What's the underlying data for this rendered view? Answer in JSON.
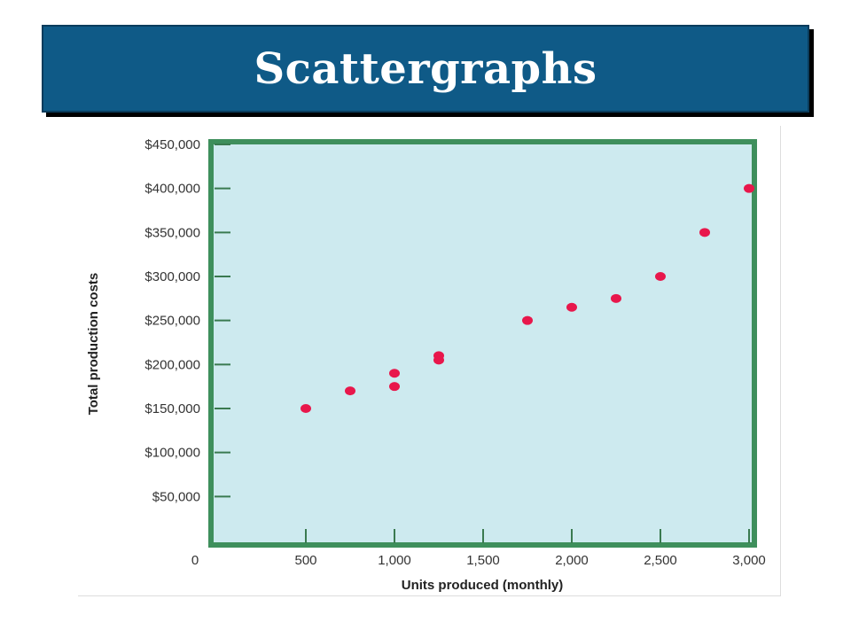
{
  "slide": {
    "title": "Scattergraphs"
  },
  "colors": {
    "banner": "#0f5a87",
    "plot_bg": "#cdeaef",
    "plot_border": "#3e8f5c",
    "point": "#e8174b"
  },
  "chart_data": {
    "type": "scatter",
    "title": "",
    "xlabel": "Units produced (monthly)",
    "ylabel": "Total production costs",
    "xlim": [
      0,
      3000
    ],
    "ylim": [
      0,
      450000
    ],
    "grid": false,
    "x_ticks": [
      500,
      1000,
      1500,
      2000,
      2500,
      3000
    ],
    "x_tick_labels": [
      "500",
      "1,000",
      "1,500",
      "2,000",
      "2,500",
      "3,000"
    ],
    "y_ticks": [
      50000,
      100000,
      150000,
      200000,
      250000,
      300000,
      350000,
      400000,
      450000
    ],
    "y_tick_labels": [
      "$50,000",
      "$100,000",
      "$150,000",
      "$200,000",
      "$250,000",
      "$300,000",
      "$350,000",
      "$400,000",
      "$450,000"
    ],
    "origin_label": "0",
    "points": [
      {
        "x": 500,
        "y": 150000
      },
      {
        "x": 750,
        "y": 170000
      },
      {
        "x": 1000,
        "y": 175000
      },
      {
        "x": 1000,
        "y": 190000
      },
      {
        "x": 1250,
        "y": 205000
      },
      {
        "x": 1250,
        "y": 210000
      },
      {
        "x": 1750,
        "y": 250000
      },
      {
        "x": 2000,
        "y": 265000
      },
      {
        "x": 2250,
        "y": 275000
      },
      {
        "x": 2500,
        "y": 300000
      },
      {
        "x": 2750,
        "y": 350000
      },
      {
        "x": 3000,
        "y": 400000
      }
    ]
  }
}
